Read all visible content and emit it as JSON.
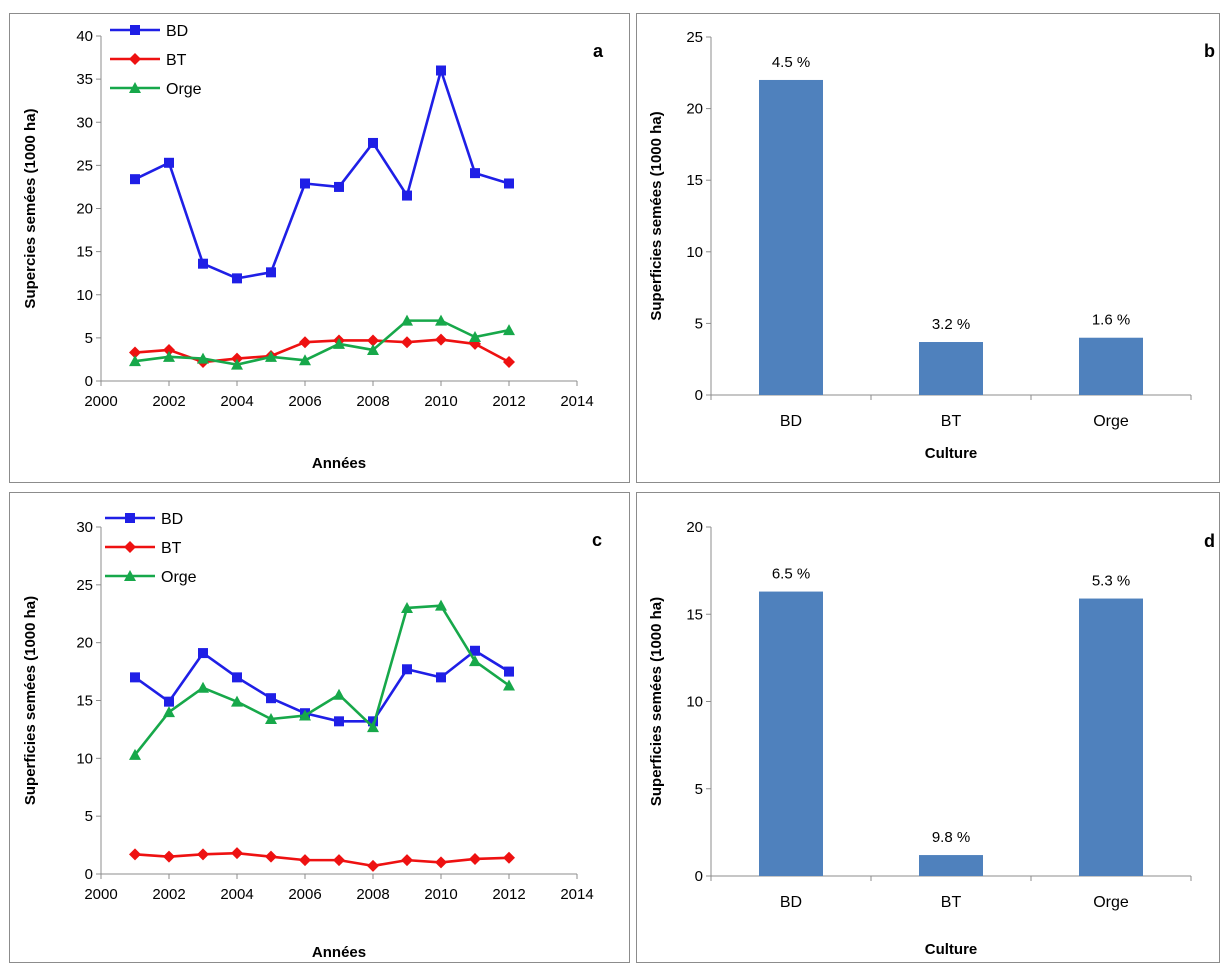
{
  "colors": {
    "bd": "#1f1fe6",
    "bt": "#ee1111",
    "orge": "#17a84a",
    "bar": "#4f81bd",
    "axis": "#8c8c8c",
    "text": "#000000"
  },
  "chart_data": [
    {
      "panel": "a",
      "type": "line",
      "xlabel": "Années",
      "ylabel": "Supercies semées (1000 ha)",
      "xlim": [
        2000,
        2014
      ],
      "ylim": [
        0,
        40
      ],
      "xticks": [
        "2000",
        "2002",
        "2004",
        "2006",
        "2008",
        "2010",
        "2012",
        "2014"
      ],
      "yticks": [
        "0",
        "5",
        "10",
        "15",
        "20",
        "25",
        "30",
        "35",
        "40"
      ],
      "grid": false,
      "legend": "top-left",
      "x": [
        2001,
        2002,
        2003,
        2004,
        2005,
        2006,
        2007,
        2008,
        2009,
        2010,
        2011,
        2012
      ],
      "series": [
        {
          "name": "BD",
          "marker": "square",
          "values": [
            23.4,
            25.3,
            13.6,
            11.9,
            12.6,
            22.9,
            22.5,
            27.6,
            21.5,
            36.0,
            24.1,
            22.9
          ]
        },
        {
          "name": "BT",
          "marker": "diamond",
          "values": [
            3.3,
            3.6,
            2.2,
            2.6,
            2.9,
            4.5,
            4.7,
            4.7,
            4.5,
            4.8,
            4.3,
            2.2
          ]
        },
        {
          "name": "Orge",
          "marker": "triangle",
          "values": [
            2.3,
            2.8,
            2.6,
            1.9,
            2.8,
            2.4,
            4.3,
            3.6,
            7.0,
            7.0,
            5.1,
            5.9
          ]
        }
      ]
    },
    {
      "panel": "b",
      "type": "bar",
      "xlabel": "Culture",
      "ylabel": "Superficies semées (1000 ha)",
      "ylim": [
        0,
        25
      ],
      "yticks": [
        "0",
        "5",
        "10",
        "15",
        "20",
        "25"
      ],
      "categories": [
        "BD",
        "BT",
        "Orge"
      ],
      "values": [
        22.0,
        3.7,
        4.0
      ],
      "labels": [
        "4.5 %",
        "3.2 %",
        "1.6 %"
      ],
      "grid": false
    },
    {
      "panel": "c",
      "type": "line",
      "xlabel": "Années",
      "ylabel": "Superficies semées (1000 ha)",
      "xlim": [
        2000,
        2014
      ],
      "ylim": [
        0,
        30
      ],
      "xticks": [
        "2000",
        "2002",
        "2004",
        "2006",
        "2008",
        "2010",
        "2012",
        "2014"
      ],
      "yticks": [
        "0",
        "5",
        "10",
        "15",
        "20",
        "25",
        "30"
      ],
      "grid": false,
      "legend": "top-left",
      "x": [
        2001,
        2002,
        2003,
        2004,
        2005,
        2006,
        2007,
        2008,
        2009,
        2010,
        2011,
        2012
      ],
      "series": [
        {
          "name": "BD",
          "marker": "square",
          "values": [
            17.0,
            14.9,
            19.1,
            17.0,
            15.2,
            13.9,
            13.2,
            13.2,
            17.7,
            17.0,
            19.3,
            17.5
          ]
        },
        {
          "name": "BT",
          "marker": "diamond",
          "values": [
            1.7,
            1.5,
            1.7,
            1.8,
            1.5,
            1.2,
            1.2,
            0.7,
            1.2,
            1.0,
            1.3,
            1.4
          ]
        },
        {
          "name": "Orge",
          "marker": "triangle",
          "values": [
            10.3,
            14.0,
            16.1,
            14.9,
            13.4,
            13.7,
            15.5,
            12.7,
            23.0,
            23.2,
            18.4,
            16.3
          ]
        }
      ]
    },
    {
      "panel": "d",
      "type": "bar",
      "xlabel": "Culture",
      "ylabel": "Superficies semées (1000 ha)",
      "ylim": [
        0,
        20
      ],
      "yticks": [
        "0",
        "5",
        "10",
        "15",
        "20"
      ],
      "categories": [
        "BD",
        "BT",
        "Orge"
      ],
      "values": [
        16.3,
        1.2,
        15.9
      ],
      "labels": [
        "6.5 %",
        "9.8 %",
        "5.3 %"
      ],
      "grid": false
    }
  ]
}
